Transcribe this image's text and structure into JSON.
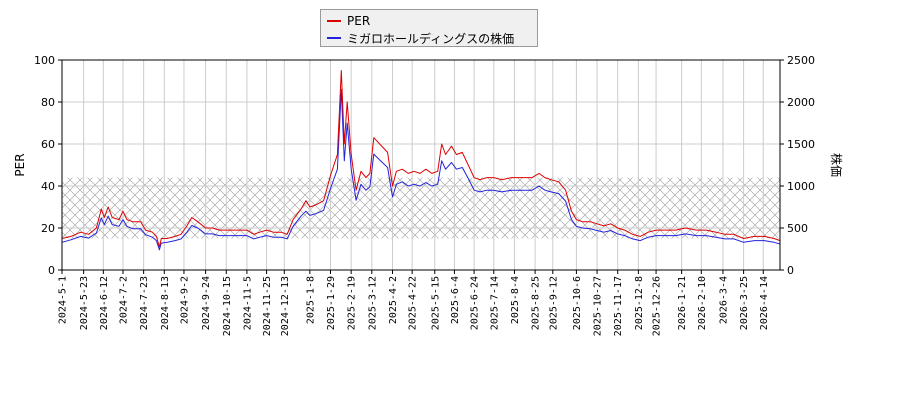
{
  "chart_data": {
    "type": "line",
    "legend": {
      "placement": "top-center",
      "entries": [
        {
          "name": "PER",
          "color": "#dd0000"
        },
        {
          "name": "ミガロホールディングスの株価",
          "color": "#2222dd"
        }
      ]
    },
    "ylabel_left": "PER",
    "ylabel_right": "株価",
    "ylim_left": [
      0,
      100
    ],
    "ylim_right": [
      0,
      2500
    ],
    "yticks_left": [
      "0",
      "20",
      "40",
      "60",
      "80",
      "100"
    ],
    "yticks_right": [
      "0",
      "500",
      "1000",
      "1500",
      "2000",
      "2500"
    ],
    "shaded_band_left": [
      15,
      44
    ],
    "xlim": [
      "2024-05-01",
      "2026-05-01"
    ],
    "x_ticks": [
      "2024-5-1",
      "2024-5-23",
      "2024-6-12",
      "2024-7-2",
      "2024-7-23",
      "2024-8-13",
      "2024-9-2",
      "2024-9-24",
      "2024-10-15",
      "2024-11-5",
      "2024-11-25",
      "2024-12-13",
      "2025-1-8",
      "2025-1-29",
      "2025-2-19",
      "2025-3-12",
      "2025-4-2",
      "2025-4-22",
      "2025-5-15",
      "2025-6-4",
      "2025-6-24",
      "2025-7-14",
      "2025-8-4",
      "2025-8-25",
      "2025-9-12",
      "2025-10-6",
      "2025-10-27",
      "2025-11-17",
      "2025-12-8",
      "2025-12-26",
      "2026-1-21",
      "2026-2-10",
      "2026-3-4",
      "2026-3-25",
      "2026-4-14"
    ],
    "series": [
      {
        "name": "PER",
        "color": "#dd0000",
        "axis": "left",
        "points": [
          [
            "2024-05-01",
            15
          ],
          [
            "2024-05-10",
            16
          ],
          [
            "2024-05-20",
            18
          ],
          [
            "2024-05-28",
            17
          ],
          [
            "2024-06-05",
            20
          ],
          [
            "2024-06-10",
            29
          ],
          [
            "2024-06-13",
            25
          ],
          [
            "2024-06-17",
            30
          ],
          [
            "2024-06-21",
            25
          ],
          [
            "2024-06-28",
            24
          ],
          [
            "2024-07-02",
            28
          ],
          [
            "2024-07-06",
            24
          ],
          [
            "2024-07-12",
            23
          ],
          [
            "2024-07-20",
            23
          ],
          [
            "2024-07-25",
            19
          ],
          [
            "2024-08-01",
            18
          ],
          [
            "2024-08-05",
            16
          ],
          [
            "2024-08-08",
            11
          ],
          [
            "2024-08-10",
            15
          ],
          [
            "2024-08-16",
            15
          ],
          [
            "2024-08-24",
            16
          ],
          [
            "2024-08-30",
            17
          ],
          [
            "2024-09-05",
            21
          ],
          [
            "2024-09-10",
            25
          ],
          [
            "2024-09-16",
            23
          ],
          [
            "2024-09-24",
            20
          ],
          [
            "2024-10-01",
            20
          ],
          [
            "2024-10-08",
            19
          ],
          [
            "2024-10-15",
            19
          ],
          [
            "2024-10-24",
            19
          ],
          [
            "2024-11-01",
            19
          ],
          [
            "2024-11-05",
            19
          ],
          [
            "2024-11-12",
            17
          ],
          [
            "2024-11-18",
            18
          ],
          [
            "2024-11-25",
            19
          ],
          [
            "2024-12-02",
            18
          ],
          [
            "2024-12-10",
            18
          ],
          [
            "2024-12-16",
            17
          ],
          [
            "2024-12-22",
            24
          ],
          [
            "2024-12-30",
            29
          ],
          [
            "2025-01-04",
            33
          ],
          [
            "2025-01-08",
            30
          ],
          [
            "2025-01-14",
            31
          ],
          [
            "2025-01-22",
            33
          ],
          [
            "2025-01-29",
            45
          ],
          [
            "2025-02-05",
            55
          ],
          [
            "2025-02-09",
            95
          ],
          [
            "2025-02-12",
            60
          ],
          [
            "2025-02-15",
            80
          ],
          [
            "2025-02-19",
            55
          ],
          [
            "2025-02-24",
            38
          ],
          [
            "2025-03-01",
            47
          ],
          [
            "2025-03-06",
            44
          ],
          [
            "2025-03-10",
            46
          ],
          [
            "2025-03-14",
            63
          ],
          [
            "2025-03-20",
            60
          ],
          [
            "2025-03-28",
            56
          ],
          [
            "2025-04-02",
            40
          ],
          [
            "2025-04-06",
            47
          ],
          [
            "2025-04-12",
            48
          ],
          [
            "2025-04-18",
            46
          ],
          [
            "2025-04-24",
            47
          ],
          [
            "2025-04-30",
            46
          ],
          [
            "2025-05-06",
            48
          ],
          [
            "2025-05-12",
            46
          ],
          [
            "2025-05-18",
            47
          ],
          [
            "2025-05-22",
            60
          ],
          [
            "2025-05-26",
            55
          ],
          [
            "2025-06-01",
            59
          ],
          [
            "2025-06-06",
            55
          ],
          [
            "2025-06-12",
            56
          ],
          [
            "2025-06-18",
            50
          ],
          [
            "2025-06-24",
            44
          ],
          [
            "2025-06-30",
            43
          ],
          [
            "2025-07-07",
            44
          ],
          [
            "2025-07-14",
            44
          ],
          [
            "2025-07-22",
            43
          ],
          [
            "2025-08-01",
            44
          ],
          [
            "2025-08-08",
            44
          ],
          [
            "2025-08-15",
            44
          ],
          [
            "2025-08-22",
            44
          ],
          [
            "2025-08-29",
            46
          ],
          [
            "2025-09-04",
            44
          ],
          [
            "2025-09-10",
            43
          ],
          [
            "2025-09-18",
            42
          ],
          [
            "2025-09-25",
            38
          ],
          [
            "2025-10-01",
            28
          ],
          [
            "2025-10-06",
            24
          ],
          [
            "2025-10-12",
            23
          ],
          [
            "2025-10-20",
            23
          ],
          [
            "2025-10-27",
            22
          ],
          [
            "2025-11-03",
            21
          ],
          [
            "2025-11-10",
            22
          ],
          [
            "2025-11-17",
            20
          ],
          [
            "2025-11-24",
            19
          ],
          [
            "2025-12-02",
            17
          ],
          [
            "2025-12-10",
            16
          ],
          [
            "2025-12-18",
            18
          ],
          [
            "2025-12-26",
            19
          ],
          [
            "2026-01-05",
            19
          ],
          [
            "2026-01-15",
            19
          ],
          [
            "2026-01-25",
            20
          ],
          [
            "2026-02-05",
            19
          ],
          [
            "2026-02-15",
            19
          ],
          [
            "2026-02-25",
            18
          ],
          [
            "2026-03-06",
            17
          ],
          [
            "2026-03-15",
            17
          ],
          [
            "2026-03-25",
            15
          ],
          [
            "2026-04-05",
            16
          ],
          [
            "2026-04-15",
            16
          ],
          [
            "2026-04-25",
            15
          ],
          [
            "2026-05-01",
            14
          ]
        ]
      },
      {
        "name": "ミガロホールディングスの株価",
        "color": "#2222dd",
        "axis": "right",
        "points": [
          [
            "2024-05-01",
            330
          ],
          [
            "2024-05-10",
            360
          ],
          [
            "2024-05-20",
            400
          ],
          [
            "2024-05-28",
            380
          ],
          [
            "2024-06-05",
            440
          ],
          [
            "2024-06-10",
            620
          ],
          [
            "2024-06-13",
            540
          ],
          [
            "2024-06-17",
            640
          ],
          [
            "2024-06-21",
            540
          ],
          [
            "2024-06-28",
            520
          ],
          [
            "2024-07-02",
            600
          ],
          [
            "2024-07-06",
            520
          ],
          [
            "2024-07-12",
            490
          ],
          [
            "2024-07-20",
            490
          ],
          [
            "2024-07-25",
            420
          ],
          [
            "2024-08-01",
            390
          ],
          [
            "2024-08-05",
            350
          ],
          [
            "2024-08-08",
            240
          ],
          [
            "2024-08-10",
            320
          ],
          [
            "2024-08-16",
            330
          ],
          [
            "2024-08-24",
            350
          ],
          [
            "2024-08-30",
            370
          ],
          [
            "2024-09-05",
            450
          ],
          [
            "2024-09-10",
            530
          ],
          [
            "2024-09-16",
            500
          ],
          [
            "2024-09-24",
            430
          ],
          [
            "2024-10-01",
            430
          ],
          [
            "2024-10-08",
            410
          ],
          [
            "2024-10-15",
            410
          ],
          [
            "2024-10-24",
            410
          ],
          [
            "2024-11-01",
            410
          ],
          [
            "2024-11-05",
            410
          ],
          [
            "2024-11-12",
            370
          ],
          [
            "2024-11-18",
            390
          ],
          [
            "2024-11-25",
            410
          ],
          [
            "2024-12-02",
            390
          ],
          [
            "2024-12-10",
            390
          ],
          [
            "2024-12-16",
            370
          ],
          [
            "2024-12-22",
            520
          ],
          [
            "2024-12-30",
            640
          ],
          [
            "2025-01-04",
            700
          ],
          [
            "2025-01-08",
            650
          ],
          [
            "2025-01-14",
            670
          ],
          [
            "2025-01-22",
            710
          ],
          [
            "2025-01-29",
            970
          ],
          [
            "2025-02-05",
            1200
          ],
          [
            "2025-02-09",
            2150
          ],
          [
            "2025-02-12",
            1300
          ],
          [
            "2025-02-15",
            1750
          ],
          [
            "2025-02-19",
            1200
          ],
          [
            "2025-02-24",
            830
          ],
          [
            "2025-03-01",
            1020
          ],
          [
            "2025-03-06",
            950
          ],
          [
            "2025-03-10",
            990
          ],
          [
            "2025-03-14",
            1380
          ],
          [
            "2025-03-20",
            1310
          ],
          [
            "2025-03-28",
            1220
          ],
          [
            "2025-04-02",
            870
          ],
          [
            "2025-04-06",
            1020
          ],
          [
            "2025-04-12",
            1050
          ],
          [
            "2025-04-18",
            1000
          ],
          [
            "2025-04-24",
            1020
          ],
          [
            "2025-04-30",
            1000
          ],
          [
            "2025-05-06",
            1040
          ],
          [
            "2025-05-12",
            1000
          ],
          [
            "2025-05-18",
            1020
          ],
          [
            "2025-05-22",
            1300
          ],
          [
            "2025-05-26",
            1200
          ],
          [
            "2025-06-01",
            1280
          ],
          [
            "2025-06-06",
            1200
          ],
          [
            "2025-06-12",
            1220
          ],
          [
            "2025-06-18",
            1090
          ],
          [
            "2025-06-24",
            950
          ],
          [
            "2025-06-30",
            930
          ],
          [
            "2025-07-07",
            950
          ],
          [
            "2025-07-14",
            950
          ],
          [
            "2025-07-22",
            930
          ],
          [
            "2025-08-01",
            950
          ],
          [
            "2025-08-08",
            950
          ],
          [
            "2025-08-15",
            950
          ],
          [
            "2025-08-22",
            950
          ],
          [
            "2025-08-29",
            1000
          ],
          [
            "2025-09-04",
            950
          ],
          [
            "2025-09-10",
            930
          ],
          [
            "2025-09-18",
            910
          ],
          [
            "2025-09-25",
            820
          ],
          [
            "2025-10-01",
            600
          ],
          [
            "2025-10-06",
            520
          ],
          [
            "2025-10-12",
            500
          ],
          [
            "2025-10-20",
            490
          ],
          [
            "2025-10-27",
            470
          ],
          [
            "2025-11-03",
            450
          ],
          [
            "2025-11-10",
            470
          ],
          [
            "2025-11-17",
            430
          ],
          [
            "2025-11-24",
            410
          ],
          [
            "2025-12-02",
            370
          ],
          [
            "2025-12-10",
            350
          ],
          [
            "2025-12-18",
            390
          ],
          [
            "2025-12-26",
            410
          ],
          [
            "2026-01-05",
            410
          ],
          [
            "2026-01-15",
            410
          ],
          [
            "2026-01-25",
            430
          ],
          [
            "2026-02-05",
            410
          ],
          [
            "2026-02-15",
            410
          ],
          [
            "2026-02-25",
            390
          ],
          [
            "2026-03-06",
            370
          ],
          [
            "2026-03-15",
            370
          ],
          [
            "2026-03-25",
            330
          ],
          [
            "2026-04-05",
            350
          ],
          [
            "2026-04-15",
            350
          ],
          [
            "2026-04-25",
            330
          ],
          [
            "2026-05-01",
            310
          ]
        ]
      }
    ]
  }
}
